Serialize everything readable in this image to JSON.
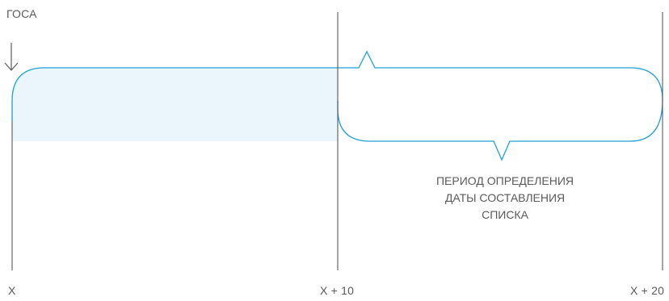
{
  "event_label": "ГОСА",
  "caption_lines": [
    "ПЕРИОД ОПРЕДЕЛЕНИЯ",
    "ДАТЫ СОСТАВЛЕНИЯ",
    "СПИСКА"
  ],
  "axis_labels": {
    "start": "X",
    "mid": "X + 10",
    "end": "X + 20"
  },
  "colors": {
    "accent": "#1f9fd5",
    "fill": "#eaf6fb",
    "lines": "#4a4a4a",
    "text": "#5a5a5a"
  },
  "icons": {
    "event_marker": "arrow-down-icon"
  }
}
